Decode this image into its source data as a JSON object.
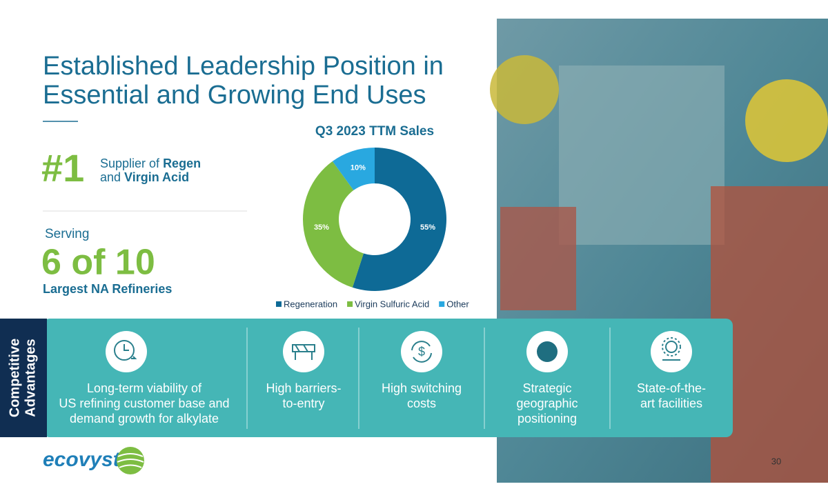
{
  "title_lines": [
    "Established Leadership Position in",
    "Essential and Growing End Uses"
  ],
  "rank": "#1",
  "supplier": {
    "line1": "Supplier of",
    "line1_bold": "Regen",
    "line2": "and",
    "line2_bold": "Virgin Acid"
  },
  "serving": "Serving",
  "serving_count": "6 of 10",
  "serving_target": "Largest NA Refineries",
  "chart_data": {
    "type": "pie",
    "title": "Q3 2023 TTM Sales",
    "categories": [
      "Regeneration",
      "Virgin Sulfuric Acid",
      "Other"
    ],
    "values": [
      55,
      35,
      10
    ],
    "value_labels": [
      "55%",
      "35%",
      "10%"
    ],
    "colors": [
      "#0e6a96",
      "#7dbd42",
      "#29a8e0"
    ],
    "donut": true
  },
  "advantages_label": [
    "Competitive",
    "Advantages"
  ],
  "advantages": [
    {
      "lines": [
        "Long-term viability of",
        "US refining customer base and",
        "demand growth for alkylate"
      ]
    },
    {
      "lines": [
        "High barriers-",
        "to-entry"
      ]
    },
    {
      "lines": [
        "High switching",
        "costs"
      ]
    },
    {
      "lines": [
        "Strategic",
        "geographic",
        "positioning"
      ]
    },
    {
      "lines": [
        "State-of-the-",
        "art facilities"
      ]
    }
  ],
  "logo": "ecovyst",
  "page_number": "30"
}
